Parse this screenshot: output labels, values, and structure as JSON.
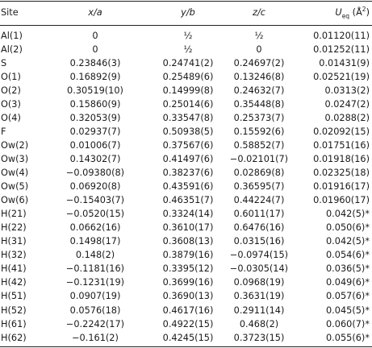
{
  "table": {
    "headers": {
      "site": "Site",
      "x": "x/a",
      "y": "y/b",
      "z": "z/c",
      "u_main": "U",
      "u_sub": "eq",
      "u_unit": "(Å",
      "u_sup": "2",
      "u_close": ")"
    },
    "rows": [
      [
        "Al(1)",
        "0",
        "½",
        "½",
        "0.01120(11)"
      ],
      [
        "Al(2)",
        "0",
        "½",
        "0",
        "0.01252(11)"
      ],
      [
        "S",
        "0.23846(3)",
        "0.24741(2)",
        "0.24697(2)",
        "0.01431(9)"
      ],
      [
        "O(1)",
        "0.16892(9)",
        "0.25489(6)",
        "0.13246(8)",
        "0.02521(19)"
      ],
      [
        "O(2)",
        "0.30519(10)",
        "0.14999(8)",
        "0.24632(7)",
        "0.0313(2)"
      ],
      [
        "O(3)",
        "0.15860(9)",
        "0.25014(6)",
        "0.35448(8)",
        "0.0247(2)"
      ],
      [
        "O(4)",
        "0.32053(9)",
        "0.33547(8)",
        "0.25373(7)",
        "0.0288(2)"
      ],
      [
        "F",
        "0.02937(7)",
        "0.50938(5)",
        "0.15592(6)",
        "0.02092(15)"
      ],
      [
        "Ow(2)",
        "0.01006(7)",
        "0.37567(6)",
        "0.58852(7)",
        "0.01751(16)"
      ],
      [
        "Ow(3)",
        "0.14302(7)",
        "0.41497(6)",
        "−0.02101(7)",
        "0.01918(16)"
      ],
      [
        "Ow(4)",
        "−0.09380(8)",
        "0.38237(6)",
        "0.02869(8)",
        "0.02325(18)"
      ],
      [
        "Ow(5)",
        "0.06920(8)",
        "0.43591(6)",
        "0.36595(7)",
        "0.01916(17)"
      ],
      [
        "Ow(6)",
        "−0.15403(7)",
        "0.46351(7)",
        "0.44224(7)",
        "0.01960(17)"
      ],
      [
        "H(21)",
        "−0.0520(15)",
        "0.3324(14)",
        "0.6011(17)",
        "0.042(5)*"
      ],
      [
        "H(22)",
        "0.0662(16)",
        "0.3610(17)",
        "0.6476(16)",
        "0.050(6)*"
      ],
      [
        "H(31)",
        "0.1498(17)",
        "0.3608(13)",
        "0.0315(16)",
        "0.042(5)*"
      ],
      [
        "H(32)",
        "0.148(2)",
        "0.3879(16)",
        "−0.0974(15)",
        "0.054(6)*"
      ],
      [
        "H(41)",
        "−0.1181(16)",
        "0.3395(12)",
        "−0.0305(14)",
        "0.036(5)*"
      ],
      [
        "H(42)",
        "−0.1231(19)",
        "0.3699(16)",
        "0.0968(19)",
        "0.049(6)*"
      ],
      [
        "H(51)",
        "0.0907(19)",
        "0.3690(13)",
        "0.3631(19)",
        "0.057(6)*"
      ],
      [
        "H(52)",
        "0.0576(18)",
        "0.4617(16)",
        "0.2911(14)",
        "0.045(5)*"
      ],
      [
        "H(61)",
        "−0.2242(17)",
        "0.4922(15)",
        "0.468(2)",
        "0.060(7)*"
      ],
      [
        "H(62)",
        "−0.161(2)",
        "0.4245(15)",
        "0.3723(15)",
        "0.055(6)*"
      ]
    ]
  }
}
